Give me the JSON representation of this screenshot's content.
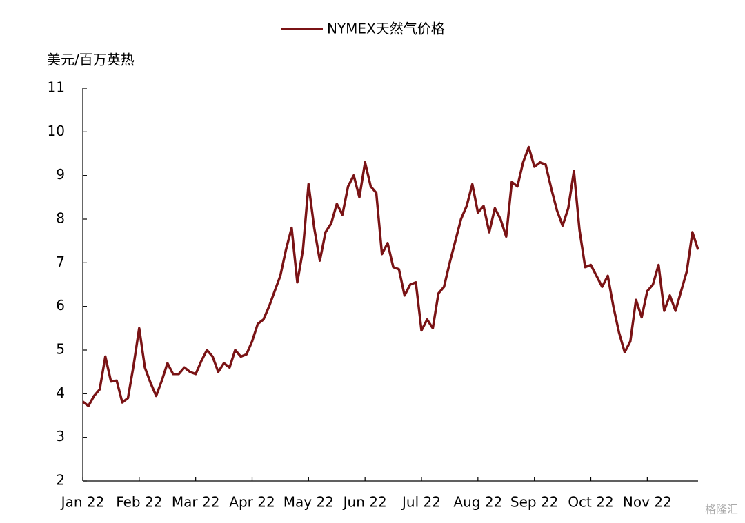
{
  "chart_data": {
    "type": "line",
    "legend_position": "top",
    "y_label": "美元/百万英热",
    "categories": [
      "Jan 22",
      null,
      null,
      null,
      null,
      null,
      null,
      null,
      null,
      null,
      "Feb 22",
      null,
      null,
      null,
      null,
      null,
      null,
      null,
      null,
      null,
      "Mar 22",
      null,
      null,
      null,
      null,
      null,
      null,
      null,
      null,
      null,
      "Apr 22",
      null,
      null,
      null,
      null,
      null,
      null,
      null,
      null,
      null,
      "May 22",
      null,
      null,
      null,
      null,
      null,
      null,
      null,
      null,
      null,
      "Jun 22",
      null,
      null,
      null,
      null,
      null,
      null,
      null,
      null,
      null,
      "Jul 22",
      null,
      null,
      null,
      null,
      null,
      null,
      null,
      null,
      null,
      "Aug 22",
      null,
      null,
      null,
      null,
      null,
      null,
      null,
      null,
      null,
      "Sep 22",
      null,
      null,
      null,
      null,
      null,
      null,
      null,
      null,
      null,
      "Oct 22",
      null,
      null,
      null,
      null,
      null,
      null,
      null,
      null,
      null,
      "Nov 22",
      null,
      null,
      null,
      null,
      null,
      null,
      null,
      null,
      null
    ],
    "series": [
      {
        "name": "NYMEX天然气价格",
        "color": "#7a1315",
        "values": [
          3.82,
          3.72,
          3.95,
          4.1,
          4.85,
          4.28,
          4.3,
          3.8,
          3.9,
          4.65,
          5.5,
          4.6,
          4.25,
          3.95,
          4.3,
          4.7,
          4.45,
          4.45,
          4.6,
          4.5,
          4.45,
          4.75,
          5.0,
          4.85,
          4.5,
          4.7,
          4.6,
          5.0,
          4.85,
          4.9,
          5.2,
          5.6,
          5.7,
          6.0,
          6.35,
          6.7,
          7.3,
          7.8,
          6.55,
          7.3,
          8.8,
          7.8,
          7.05,
          7.7,
          7.9,
          8.35,
          8.1,
          8.75,
          9.0,
          8.5,
          9.3,
          8.75,
          8.6,
          7.2,
          7.45,
          6.9,
          6.85,
          6.25,
          6.5,
          6.55,
          5.45,
          5.7,
          5.5,
          6.3,
          6.45,
          7.0,
          7.5,
          8.0,
          8.3,
          8.8,
          8.15,
          8.3,
          7.7,
          8.25,
          8.0,
          7.6,
          8.85,
          8.75,
          9.3,
          9.65,
          9.2,
          9.3,
          9.25,
          8.7,
          8.2,
          7.85,
          8.25,
          9.1,
          7.75,
          6.9,
          6.95,
          6.7,
          6.45,
          6.7,
          6.0,
          5.4,
          4.95,
          5.2,
          6.15,
          5.75,
          6.35,
          6.5,
          6.95,
          5.9,
          6.25,
          5.9,
          6.35,
          6.8,
          7.7,
          7.3
        ]
      }
    ],
    "ylim": [
      2,
      11
    ],
    "yticks": [
      2,
      3,
      4,
      5,
      6,
      7,
      8,
      9,
      10,
      11
    ],
    "grid": false
  },
  "watermark": "格隆汇"
}
